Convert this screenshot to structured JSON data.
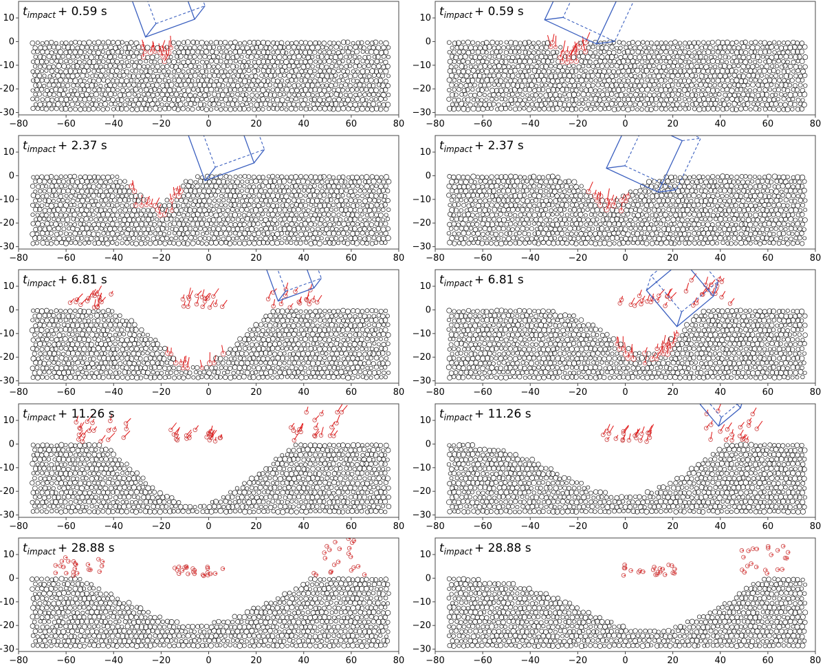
{
  "chart_data": {
    "type": "scatter",
    "description_units": "x and y in meters (simulation domain); panels show particle bed after projectile impact",
    "xlim": [
      -80,
      80
    ],
    "ylim": [
      -31,
      17
    ],
    "xticks": [
      "−80",
      "−60",
      "−40",
      "−20",
      "0",
      "20",
      "40",
      "60",
      "80"
    ],
    "yticks": [
      "−30",
      "−20",
      "−10",
      "0",
      "10"
    ],
    "xtick_values": [
      -80,
      -60,
      -40,
      -20,
      0,
      20,
      40,
      60,
      80
    ],
    "ytick_values": [
      -30,
      -20,
      -10,
      0,
      10
    ],
    "colors": {
      "particle": "#1a1a1a",
      "moving_particle": "#c94040",
      "velocity_vector": "#e01010",
      "projectile": "#3a5fbf"
    },
    "title_prefix": "t",
    "title_subscript": "impact",
    "panels": [
      {
        "column": "left",
        "time_text": "+ 0.59 s",
        "time_s": 0.59,
        "case": 0,
        "stage": 0,
        "projectile": {
          "cx": -20,
          "cy": 16,
          "size": 22,
          "angle": 20
        },
        "crater": {
          "cx": -22,
          "width": 6,
          "depth": 3
        },
        "ejecta_left": [],
        "ejecta_right": []
      },
      {
        "column": "right",
        "time_text": "+ 0.59 s",
        "time_s": 0.59,
        "case": 1,
        "stage": 0,
        "projectile": {
          "cx": -18,
          "cy": 15,
          "size": 24,
          "angle": -25
        },
        "crater": {
          "cx": -24,
          "width": 5,
          "depth": 3
        },
        "ejecta_left": [],
        "ejecta_right": []
      },
      {
        "column": "left",
        "time_text": "+ 2.37 s",
        "time_s": 2.37,
        "case": 0,
        "stage": 1,
        "projectile": {
          "cx": 5,
          "cy": 12,
          "size": 22,
          "angle": 20
        },
        "crater": {
          "cx": -22,
          "width": 10,
          "depth": 12
        },
        "ejecta_left": [],
        "ejecta_right": []
      },
      {
        "column": "right",
        "time_text": "+ 2.37 s",
        "time_s": 2.37,
        "case": 1,
        "stage": 1,
        "projectile": {
          "cx": 8,
          "cy": 9,
          "size": 24,
          "angle": -25
        },
        "crater": {
          "cx": -6,
          "width": 14,
          "depth": 10
        },
        "ejecta_left": [],
        "ejecta_right": []
      },
      {
        "column": "left",
        "time_text": "+ 6.81 s",
        "time_s": 6.81,
        "case": 0,
        "stage": 2,
        "projectile": {
          "cx": 34,
          "cy": 14,
          "size": 16,
          "angle": 20
        },
        "crater": {
          "cx": -5,
          "width": 22,
          "depth": 24
        },
        "ejecta_left": [
          -50,
          6
        ],
        "ejecta_right": [
          35,
          8
        ]
      },
      {
        "column": "right",
        "time_text": "+ 6.81 s",
        "time_s": 6.81,
        "case": 1,
        "stage": 2,
        "projectile": {
          "cx": 23,
          "cy": 7,
          "size": 20,
          "angle": 40
        },
        "crater": {
          "cx": 8,
          "width": 22,
          "depth": 18
        },
        "ejecta_left": [],
        "ejecta_right": [
          35,
          12
        ]
      },
      {
        "column": "left",
        "time_text": "+ 11.26 s",
        "time_s": 11.26,
        "case": 0,
        "stage": 3,
        "projectile": null,
        "crater": {
          "cx": -5,
          "width": 30,
          "depth": 26
        },
        "ejecta_left": [
          -45,
          10
        ],
        "ejecta_right": [
          45,
          14
        ]
      },
      {
        "column": "right",
        "time_text": "+ 11.26 s",
        "time_s": 11.26,
        "case": 1,
        "stage": 3,
        "projectile": {
          "cx": 40,
          "cy": 16,
          "size": 12,
          "angle": 40
        },
        "crater": {
          "cx": 0,
          "width": 36,
          "depth": 22
        },
        "ejecta_left": [],
        "ejecta_right": [
          45,
          15
        ]
      },
      {
        "column": "left",
        "time_text": "+ 28.88 s",
        "time_s": 28.88,
        "case": 0,
        "stage": 4,
        "projectile": null,
        "crater": {
          "cx": -5,
          "width": 36,
          "depth": 20
        },
        "ejecta_left": [
          -55,
          8
        ],
        "ejecta_right": [
          55,
          16
        ]
      },
      {
        "column": "right",
        "time_text": "+ 28.88 s",
        "time_s": 28.88,
        "case": 1,
        "stage": 4,
        "projectile": null,
        "crater": {
          "cx": 10,
          "width": 40,
          "depth": 22
        },
        "ejecta_left": [],
        "ejecta_right": [
          60,
          14
        ]
      }
    ]
  }
}
